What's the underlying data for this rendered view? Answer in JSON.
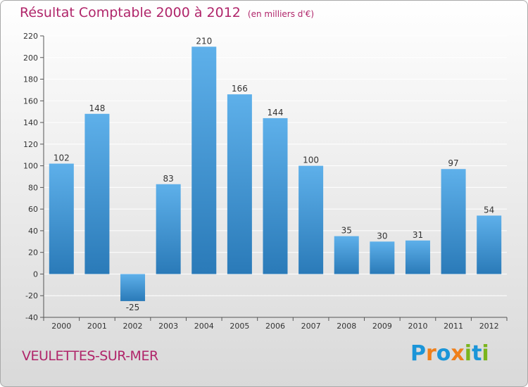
{
  "header": {
    "title": "Résultat Comptable 2000 à 2012",
    "unit": "(en milliers d'€)"
  },
  "footer": {
    "place": "VEULETTES-SUR-MER",
    "logo_text": "Proxiti",
    "logo_colors": [
      "#1b95d8",
      "#ef7f1a",
      "#1b95d8",
      "#ef7f1a",
      "#7ab51d",
      "#1b95d8",
      "#7ab51d"
    ]
  },
  "colors": {
    "title": "#b0256a",
    "bar_top": "#5eb0ea",
    "bar_bottom": "#2a7ab8",
    "grid": "#ffffff",
    "axis_text": "#333333"
  },
  "chart_data": {
    "type": "bar",
    "title": "Résultat Comptable 2000 à 2012",
    "xlabel": "",
    "ylabel": "",
    "ylim": [
      -40,
      220
    ],
    "yticks": [
      -40,
      -20,
      0,
      20,
      40,
      60,
      80,
      100,
      120,
      140,
      160,
      180,
      200,
      220
    ],
    "categories": [
      "2000",
      "2001",
      "2002",
      "2003",
      "2004",
      "2005",
      "2006",
      "2007",
      "2008",
      "2009",
      "2010",
      "2011",
      "2012"
    ],
    "values": [
      102,
      148,
      -25,
      83,
      210,
      166,
      144,
      100,
      35,
      30,
      31,
      97,
      54
    ],
    "labels": [
      "102",
      "148",
      "-25",
      "83",
      "210",
      "166",
      "144",
      "100",
      "35",
      "30",
      "31",
      "97",
      "54"
    ],
    "grid": true
  }
}
